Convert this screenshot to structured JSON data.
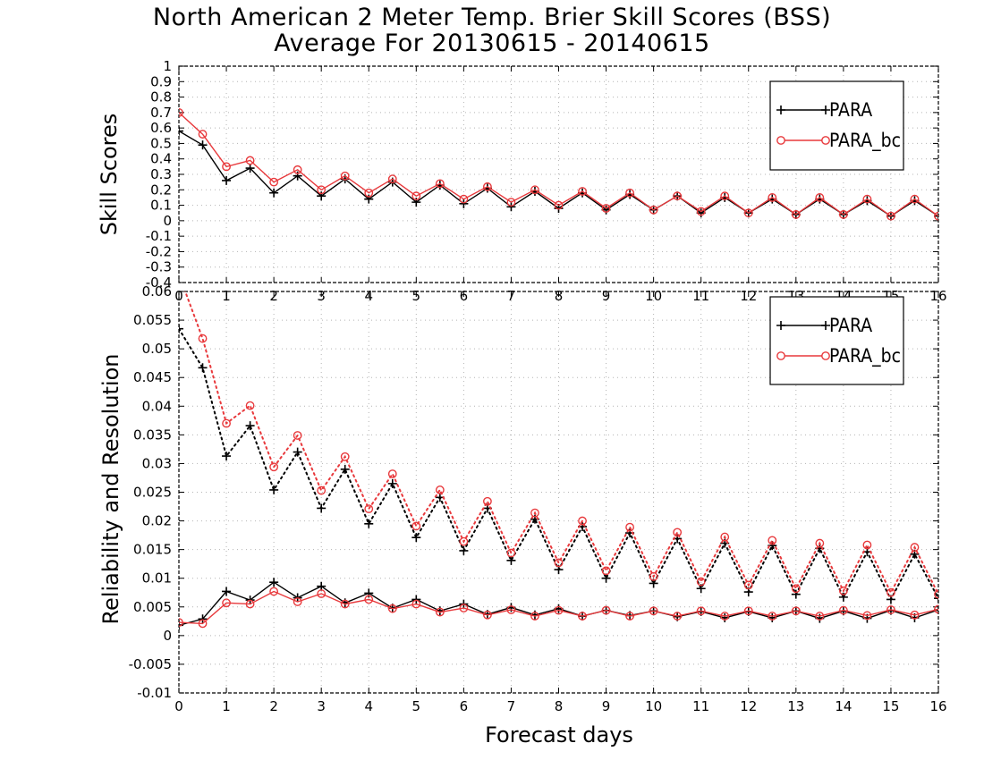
{
  "titles": {
    "line1": "North American 2 Meter Temp. Brier Skill Scores (BSS)",
    "line2": "Average For 20130615 - 20140615"
  },
  "axes": {
    "top_ylabel": "Skill Scores",
    "bottom_ylabel": "Reliability and Resolution",
    "xlabel": "Forecast days"
  },
  "colors": {
    "para": "#000000",
    "para_bc": "#e8393c",
    "grid": "#b4b4b4"
  },
  "chart_data": [
    {
      "type": "line",
      "ylim": [
        -0.4,
        1.0
      ],
      "xlim": [
        0,
        16
      ],
      "yticks": [
        "-0.4",
        "-0.3",
        "-0.2",
        "-0.1",
        "0",
        "0.1",
        "0.2",
        "0.3",
        "0.4",
        "0.5",
        "0.6",
        "0.7",
        "0.8",
        "0.9",
        "1"
      ],
      "xticks": [
        "0",
        "1",
        "2",
        "3",
        "4",
        "5",
        "6",
        "7",
        "8",
        "9",
        "10",
        "11",
        "12",
        "13",
        "14",
        "15",
        "16"
      ],
      "grid": true,
      "legend_position": "top-right",
      "x": [
        0,
        0.5,
        1,
        1.5,
        2,
        2.5,
        3,
        3.5,
        4,
        4.5,
        5,
        5.5,
        6,
        6.5,
        7,
        7.5,
        8,
        8.5,
        9,
        9.5,
        10,
        10.5,
        11,
        11.5,
        12,
        12.5,
        13,
        13.5,
        14,
        14.5,
        15,
        15.5,
        16
      ],
      "series": [
        {
          "name": "PARA",
          "marker": "plus",
          "style": "solid",
          "values": [
            0.58,
            0.49,
            0.26,
            0.34,
            0.18,
            0.29,
            0.16,
            0.27,
            0.14,
            0.25,
            0.12,
            0.23,
            0.11,
            0.21,
            0.09,
            0.19,
            0.08,
            0.18,
            0.07,
            0.17,
            0.07,
            0.16,
            0.05,
            0.15,
            0.05,
            0.14,
            0.04,
            0.14,
            0.04,
            0.13,
            0.03,
            0.13,
            0.03
          ]
        },
        {
          "name": "PARA_bc",
          "marker": "circle",
          "style": "solid",
          "values": [
            0.7,
            0.56,
            0.35,
            0.39,
            0.25,
            0.33,
            0.2,
            0.29,
            0.18,
            0.27,
            0.16,
            0.24,
            0.14,
            0.22,
            0.12,
            0.2,
            0.1,
            0.19,
            0.08,
            0.18,
            0.07,
            0.16,
            0.06,
            0.16,
            0.05,
            0.15,
            0.04,
            0.15,
            0.04,
            0.14,
            0.03,
            0.14,
            0.03
          ]
        }
      ]
    },
    {
      "type": "line",
      "ylim": [
        -0.01,
        0.06
      ],
      "xlim": [
        0,
        16
      ],
      "yticks": [
        "-0.01",
        "-0.005",
        "0",
        "0.005",
        "0.01",
        "0.015",
        "0.02",
        "0.025",
        "0.03",
        "0.035",
        "0.04",
        "0.045",
        "0.05",
        "0.055",
        "0.06"
      ],
      "xticks": [
        "0",
        "1",
        "2",
        "3",
        "4",
        "5",
        "6",
        "7",
        "8",
        "9",
        "10",
        "11",
        "12",
        "13",
        "14",
        "15",
        "16"
      ],
      "grid": true,
      "legend_position": "top-right",
      "x": [
        0,
        0.5,
        1,
        1.5,
        2,
        2.5,
        3,
        3.5,
        4,
        4.5,
        5,
        5.5,
        6,
        6.5,
        7,
        7.5,
        8,
        8.5,
        9,
        9.5,
        10,
        10.5,
        11,
        11.5,
        12,
        12.5,
        13,
        13.5,
        14,
        14.5,
        15,
        15.5,
        16
      ],
      "series": [
        {
          "name": "PARA",
          "marker": "plus",
          "style": "dotted",
          "role": "resolution",
          "values": [
            0.0535,
            0.0467,
            0.0313,
            0.0366,
            0.0254,
            0.032,
            0.0222,
            0.029,
            0.0195,
            0.0265,
            0.0171,
            0.0241,
            0.0148,
            0.0222,
            0.0131,
            0.0203,
            0.0115,
            0.019,
            0.01,
            0.0179,
            0.0091,
            0.0169,
            0.0082,
            0.0161,
            0.0076,
            0.0157,
            0.0072,
            0.0152,
            0.0067,
            0.0146,
            0.0063,
            0.0142,
            0.0065
          ]
        },
        {
          "name": "PARA_bc",
          "marker": "circle",
          "style": "dotted",
          "role": "resolution",
          "values": [
            0.063,
            0.0518,
            0.037,
            0.0401,
            0.0294,
            0.0349,
            0.0253,
            0.0312,
            0.0221,
            0.0282,
            0.0191,
            0.0254,
            0.0164,
            0.0234,
            0.0144,
            0.0214,
            0.0127,
            0.02,
            0.0113,
            0.0189,
            0.0103,
            0.018,
            0.0094,
            0.0172,
            0.0088,
            0.0166,
            0.0082,
            0.0161,
            0.0078,
            0.0158,
            0.0075,
            0.0154,
            0.0072
          ]
        },
        {
          "name": "PARA",
          "marker": "plus",
          "style": "solid",
          "role": "reliability",
          "values": [
            0.0018,
            0.0029,
            0.0077,
            0.0062,
            0.0093,
            0.0066,
            0.0086,
            0.0057,
            0.0074,
            0.0048,
            0.0063,
            0.0043,
            0.0055,
            0.0037,
            0.0049,
            0.0036,
            0.0047,
            0.0034,
            0.0044,
            0.0035,
            0.0043,
            0.0033,
            0.0042,
            0.0031,
            0.0042,
            0.0031,
            0.0043,
            0.003,
            0.0043,
            0.003,
            0.0044,
            0.0031,
            0.0045
          ]
        },
        {
          "name": "PARA_bc",
          "marker": "circle",
          "style": "solid",
          "role": "reliability",
          "values": [
            0.0023,
            0.0021,
            0.0057,
            0.0055,
            0.0077,
            0.0059,
            0.0073,
            0.0055,
            0.0063,
            0.0047,
            0.0055,
            0.0041,
            0.0048,
            0.0036,
            0.0045,
            0.0034,
            0.0044,
            0.0034,
            0.0044,
            0.0034,
            0.0043,
            0.0034,
            0.0043,
            0.0034,
            0.0043,
            0.0034,
            0.0043,
            0.0034,
            0.0044,
            0.0035,
            0.0045,
            0.0036,
            0.0046
          ]
        }
      ]
    }
  ]
}
